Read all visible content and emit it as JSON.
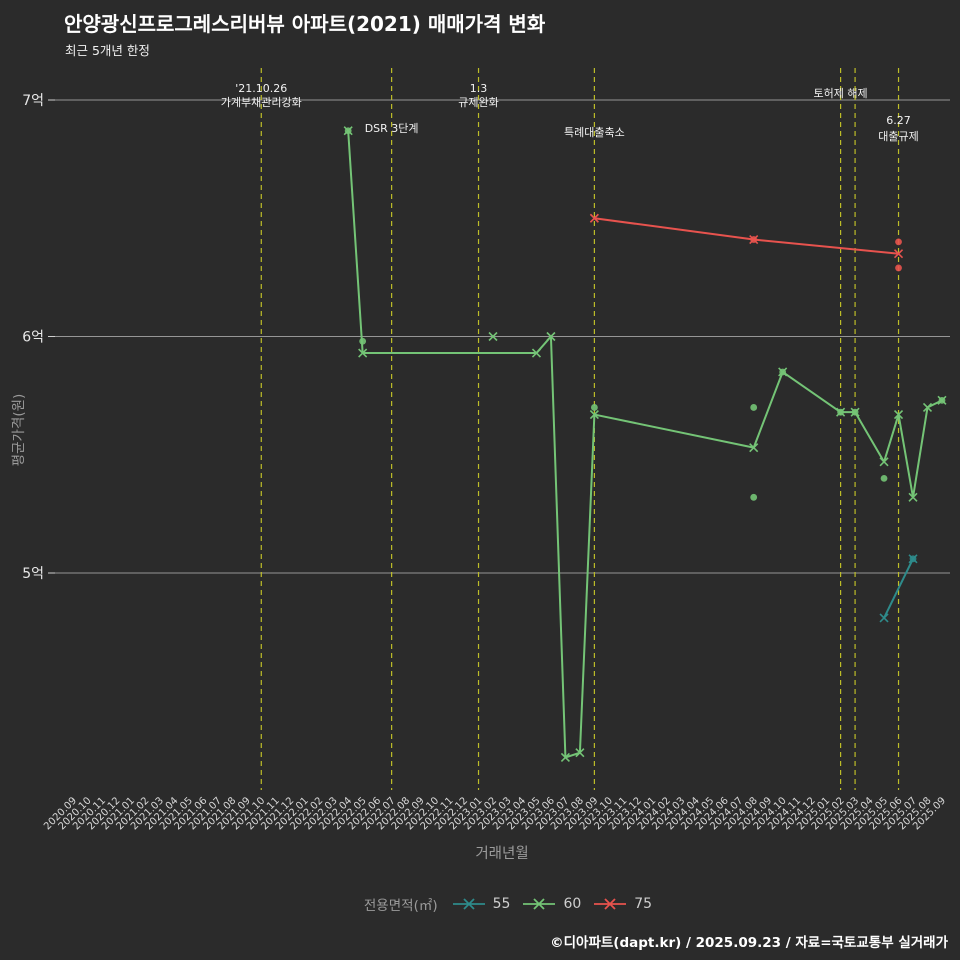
{
  "title": "안양광신프로그레스리버뷰 아파트(2021) 매매가격 변화",
  "subtitle": "최근 5개년 한정",
  "footer": "©디아파트(dapt.kr) / 2025.09.23 / 자료=국토교통부 실거래가",
  "colors": {
    "background": "#2b2b2b",
    "grid": "#969696",
    "event_line": "#bdbd28",
    "axis_text": "#e8e8e8",
    "muted_text": "#9b9b9b",
    "series_55": "#2e8b8b",
    "series_60": "#74c476",
    "series_75": "#e8534e"
  },
  "chart_data": {
    "type": "line",
    "title": "안양광신프로그레스리버뷰 아파트(2021) 매매가격 변화",
    "subtitle": "최근 5개년 한정",
    "xlabel": "거래년월",
    "ylabel": "평균가격(원)",
    "legend_title": "전용면적(㎡)",
    "y_unit": "억 원",
    "ylim": [
      4.08,
      7.14
    ],
    "grid": "horizontal-only",
    "legend_position": "bottom-center",
    "yticks": [
      {
        "value": 7,
        "label": "7억"
      },
      {
        "value": 6,
        "label": "6억"
      },
      {
        "value": 5,
        "label": "5억"
      }
    ],
    "x_categories": [
      "2020.09",
      "2020.10",
      "2020.11",
      "2020.12",
      "2021.01",
      "2021.02",
      "2021.03",
      "2021.04",
      "2021.05",
      "2021.06",
      "2021.07",
      "2021.08",
      "2021.09",
      "2021.10",
      "2021.11",
      "2021.12",
      "2022.01",
      "2022.02",
      "2022.03",
      "2022.04",
      "2022.05",
      "2022.06",
      "2022.07",
      "2022.08",
      "2022.09",
      "2022.10",
      "2022.11",
      "2022.12",
      "2023.01",
      "2023.02",
      "2023.03",
      "2023.04",
      "2023.05",
      "2023.06",
      "2023.07",
      "2023.08",
      "2023.09",
      "2023.10",
      "2023.11",
      "2023.12",
      "2024.01",
      "2024.02",
      "2024.03",
      "2024.04",
      "2024.05",
      "2024.06",
      "2024.07",
      "2024.08",
      "2024.09",
      "2024.10",
      "2024.11",
      "2024.12",
      "2025.01",
      "2025.02",
      "2025.03",
      "2025.04",
      "2025.05",
      "2025.06",
      "2025.07",
      "2025.08",
      "2025.09"
    ],
    "events": [
      {
        "month": "2021.10",
        "labels": [
          {
            "text": "'21.10.26",
            "dy": 92
          },
          {
            "text": "가계부채관리강화",
            "dy": 106
          }
        ]
      },
      {
        "month": "2022.07",
        "labels": [
          {
            "text": "DSR 3단계",
            "dy": 132
          }
        ]
      },
      {
        "month": "2023.01",
        "labels": [
          {
            "text": "1.3",
            "dy": 92
          },
          {
            "text": "규제완화",
            "dy": 106
          }
        ]
      },
      {
        "month": "2023.09",
        "labels": [
          {
            "text": "특례대출축소",
            "dy": 136
          }
        ]
      },
      {
        "month": "2025.02",
        "labels": [
          {
            "text": "토허제 해제",
            "dy": 97
          }
        ]
      },
      {
        "month": "2025.03",
        "labels": []
      },
      {
        "month": "2025.06",
        "labels": [
          {
            "text": "6.27",
            "dy": 124
          },
          {
            "text": "대출규제",
            "dy": 140
          }
        ]
      }
    ],
    "series": [
      {
        "name": "55",
        "color": "#2e8b8b",
        "points": [
          {
            "x": "2025.05",
            "y": 4.81
          },
          {
            "x": "2025.07",
            "y": 5.06
          }
        ],
        "dots": [
          {
            "x": "2025.07",
            "y": 5.06
          }
        ]
      },
      {
        "name": "60",
        "color": "#74c476",
        "points": [
          {
            "x": "2022.04",
            "y": 6.87
          },
          {
            "x": "2022.05",
            "y": 5.93
          },
          {
            "x": "2023.05",
            "y": 5.93
          },
          {
            "x": "2023.06",
            "y": 6.0
          },
          {
            "x": "2023.07",
            "y": 4.22
          },
          {
            "x": "2023.08",
            "y": 4.24
          },
          {
            "x": "2023.09",
            "y": 5.67
          },
          {
            "x": "2024.08",
            "y": 5.53
          },
          {
            "x": "2024.10",
            "y": 5.85
          },
          {
            "x": "2025.02",
            "y": 5.68
          },
          {
            "x": "2025.03",
            "y": 5.68
          },
          {
            "x": "2025.05",
            "y": 5.47
          },
          {
            "x": "2025.06",
            "y": 5.67
          },
          {
            "x": "2025.07",
            "y": 5.32
          },
          {
            "x": "2025.08",
            "y": 5.7
          },
          {
            "x": "2025.09",
            "y": 5.73
          }
        ],
        "lone_points": [
          {
            "x": "2023.02",
            "y": 6.0
          }
        ],
        "dots": [
          {
            "x": "2022.04",
            "y": 6.87
          },
          {
            "x": "2022.05",
            "y": 5.98
          },
          {
            "x": "2023.09",
            "y": 5.7
          },
          {
            "x": "2024.08",
            "y": 5.7
          },
          {
            "x": "2024.08",
            "y": 5.32
          },
          {
            "x": "2024.10",
            "y": 5.85
          },
          {
            "x": "2025.02",
            "y": 5.68
          },
          {
            "x": "2025.03",
            "y": 5.68
          },
          {
            "x": "2025.05",
            "y": 5.4
          },
          {
            "x": "2025.09",
            "y": 5.73
          }
        ]
      },
      {
        "name": "75",
        "color": "#e8534e",
        "points": [
          {
            "x": "2023.09",
            "y": 6.5
          },
          {
            "x": "2024.08",
            "y": 6.41
          },
          {
            "x": "2025.06",
            "y": 6.35
          }
        ],
        "dots": [
          {
            "x": "2024.08",
            "y": 6.41
          },
          {
            "x": "2025.06",
            "y": 6.4
          },
          {
            "x": "2025.06",
            "y": 6.29
          }
        ]
      }
    ]
  }
}
